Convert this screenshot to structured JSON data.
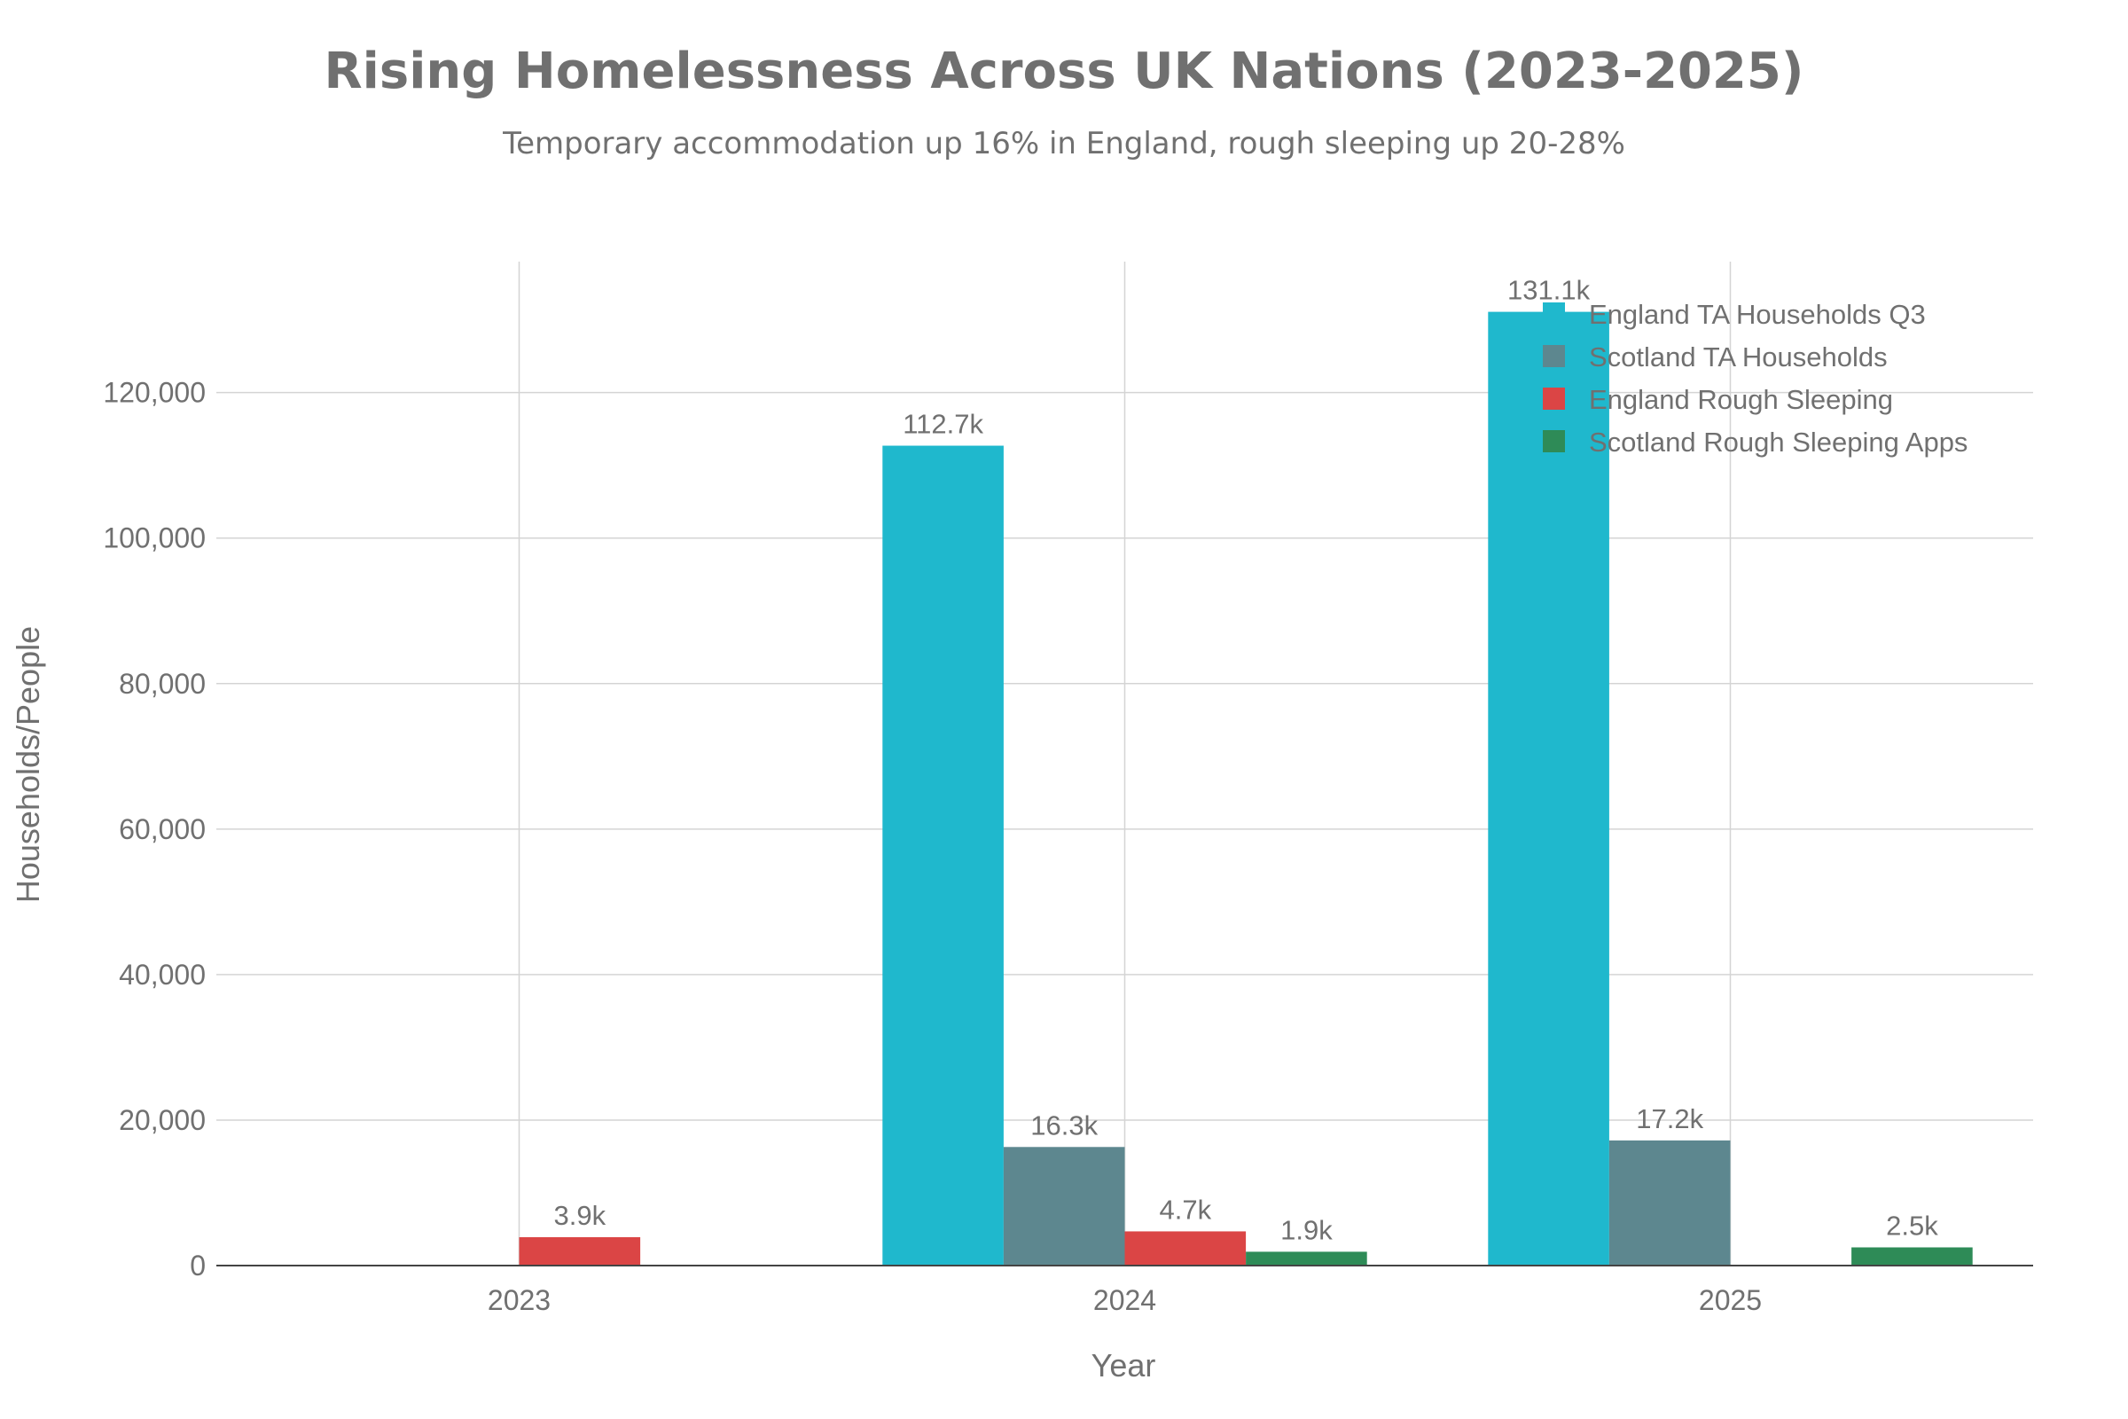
{
  "chart_data": {
    "type": "bar",
    "title": "Rising Homelessness Across UK Nations (2023-2025)",
    "subtitle": "Temporary accommodation up 16% in England, rough sleeping up 20-28%",
    "xlabel": "Year",
    "ylabel": "Households/People",
    "categories": [
      "2023",
      "2024",
      "2025"
    ],
    "ylim": [
      0,
      138000
    ],
    "yticks": [
      0,
      20000,
      40000,
      60000,
      80000,
      100000,
      120000
    ],
    "ytick_labels": [
      "0",
      "20,000",
      "40,000",
      "60,000",
      "80,000",
      "100,000",
      "120,000"
    ],
    "grid": true,
    "legend_position": "top-right",
    "series": [
      {
        "name": "England TA Households Q3",
        "color": "#1fb8cd",
        "values": [
          null,
          112700,
          131100
        ],
        "labels": [
          "",
          "112.7k",
          "131.1k"
        ]
      },
      {
        "name": "Scotland TA Households",
        "color": "#5d878f",
        "values": [
          null,
          16300,
          17200
        ],
        "labels": [
          "",
          "16.3k",
          "17.2k"
        ]
      },
      {
        "name": "England Rough Sleeping",
        "color": "#db4545",
        "values": [
          3900,
          4700,
          null
        ],
        "labels": [
          "3.9k",
          "4.7k",
          ""
        ]
      },
      {
        "name": "Scotland Rough Sleeping Apps",
        "color": "#2e8b57",
        "values": [
          null,
          1900,
          2500
        ],
        "labels": [
          "",
          "1.9k",
          "2.5k"
        ]
      }
    ]
  }
}
